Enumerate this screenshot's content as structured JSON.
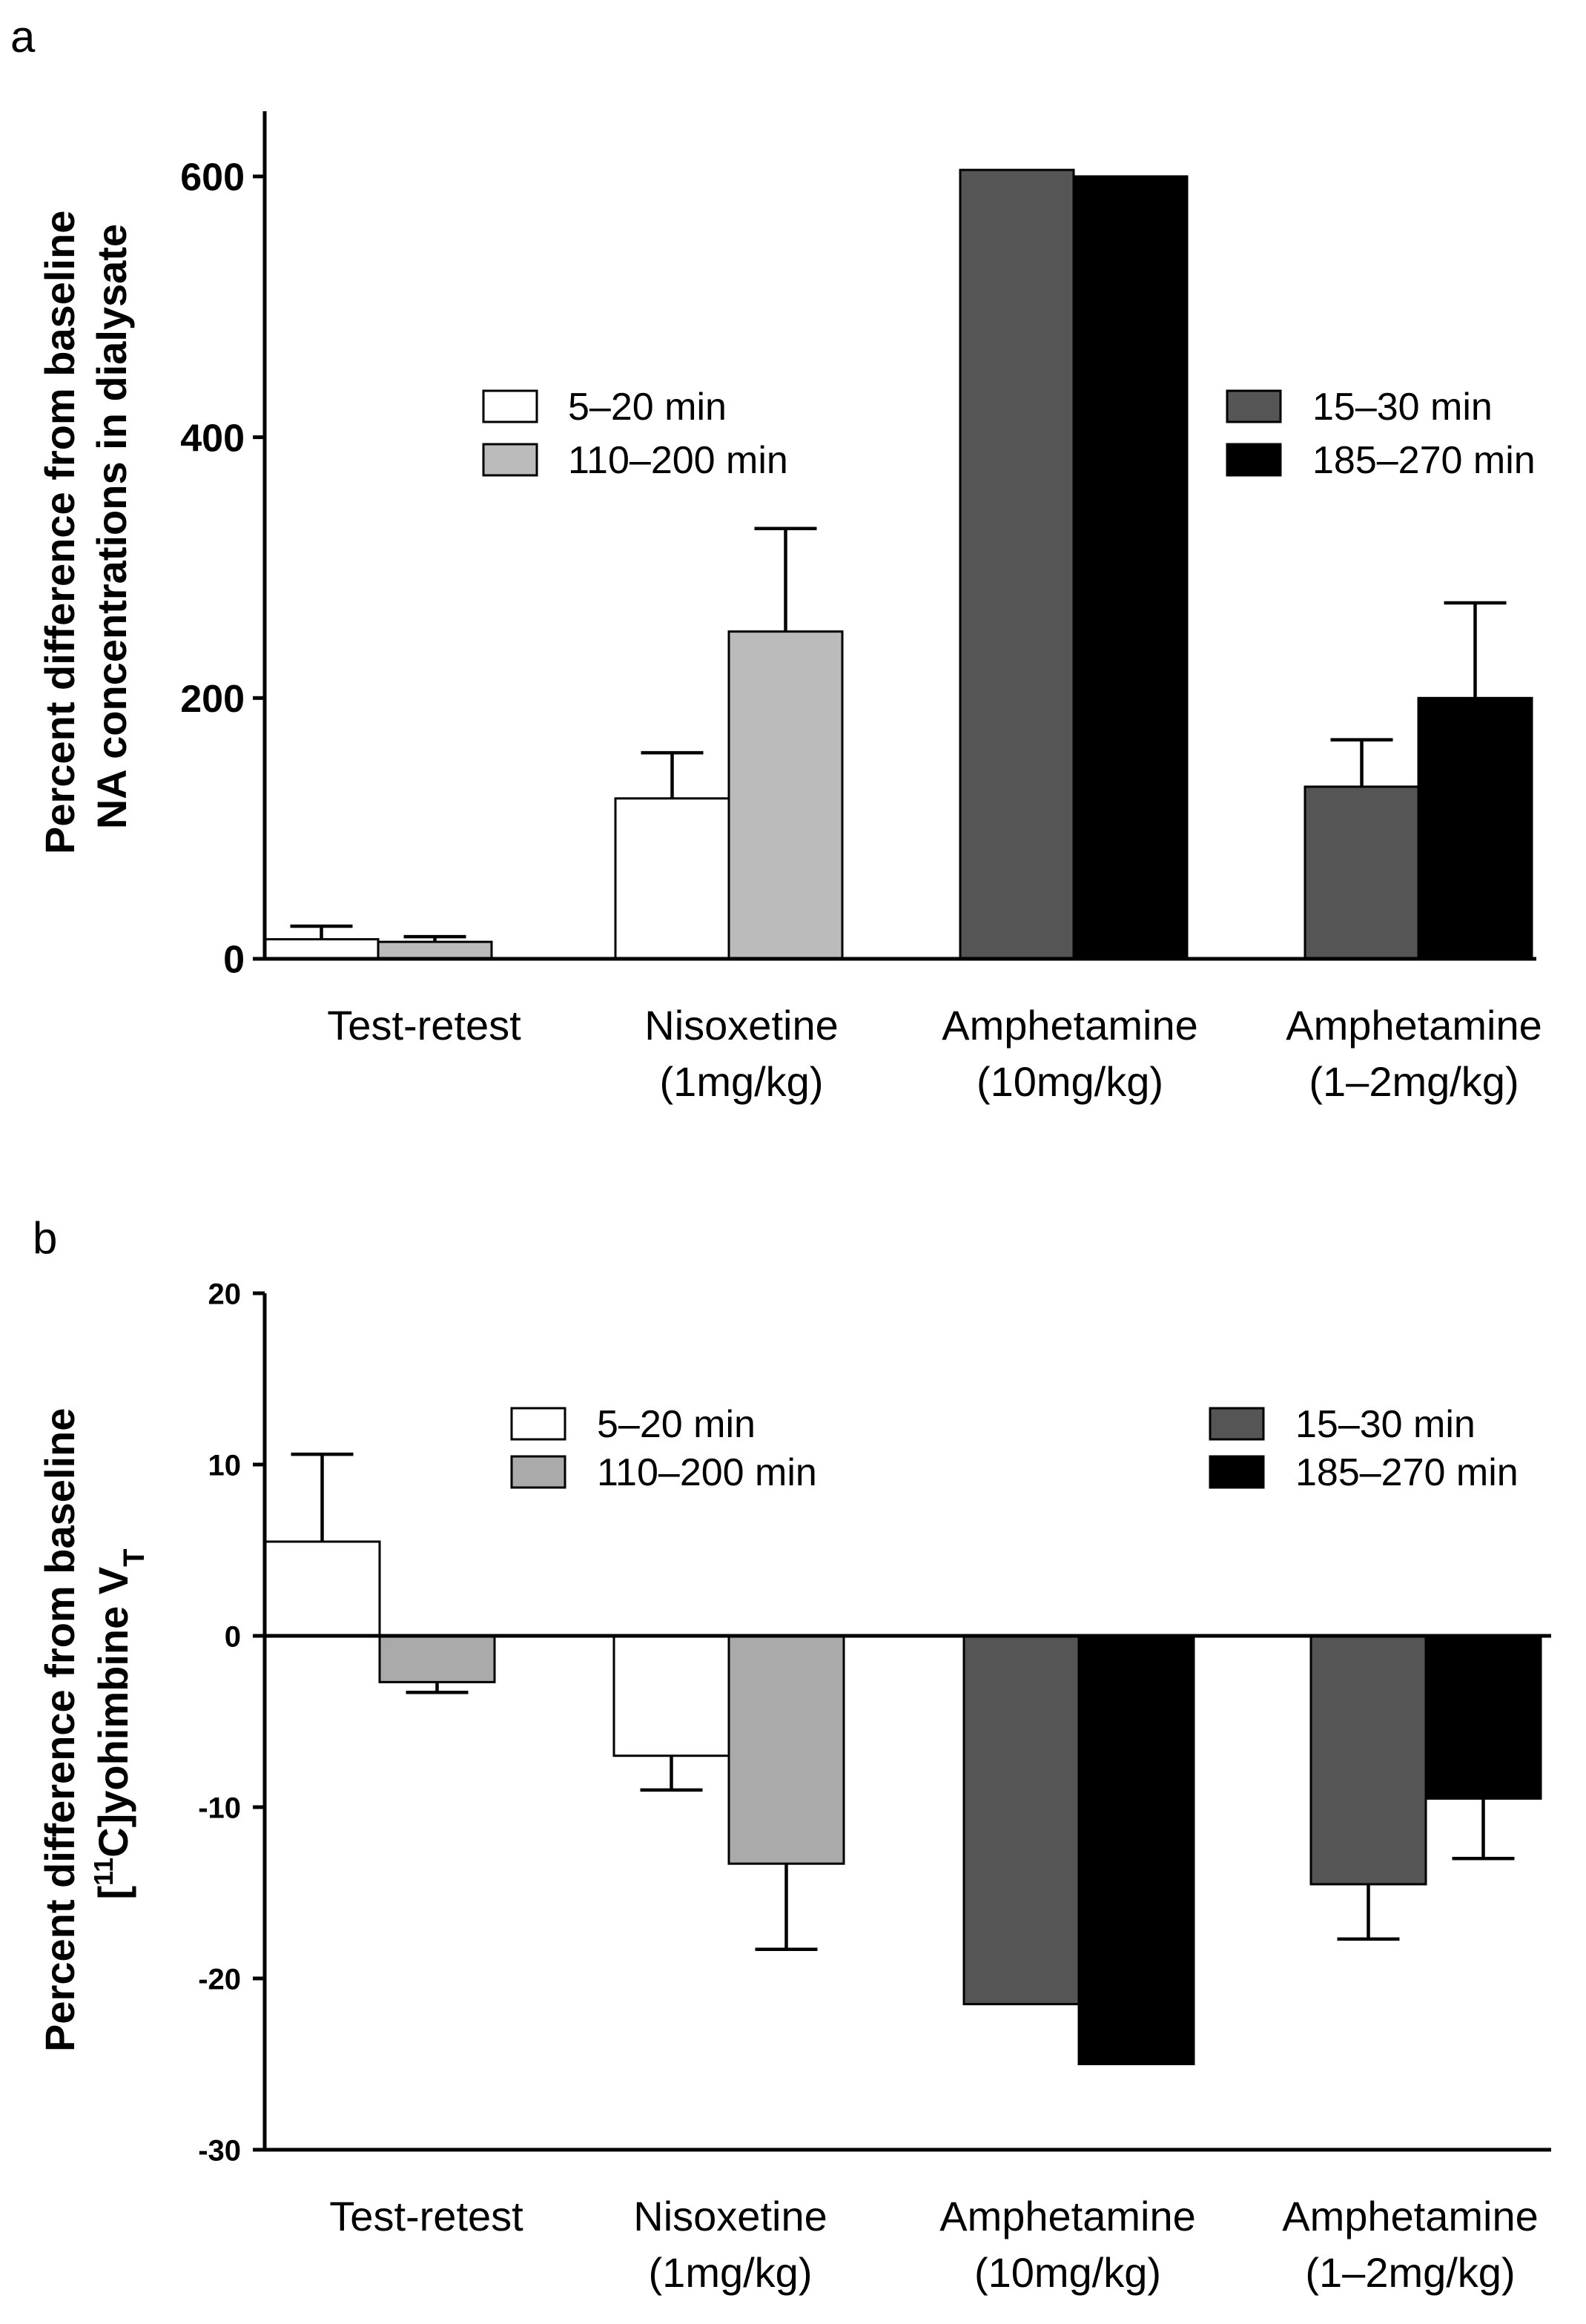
{
  "chart_data": [
    {
      "type": "bar",
      "panel": "a",
      "ylabel_lines": [
        "Percent difference from baseline",
        "NA concentrations in dialysate"
      ],
      "ylim": [
        0,
        650
      ],
      "yticks": [
        0,
        200,
        400,
        600
      ],
      "categories": [
        {
          "lines": [
            "Test-retest"
          ]
        },
        {
          "lines": [
            "Nisoxetine",
            "(1mg/kg)"
          ]
        },
        {
          "lines": [
            "Amphetamine",
            "(10mg/kg)"
          ]
        },
        {
          "lines": [
            "Amphetamine",
            "(1–2mg/kg)"
          ]
        }
      ],
      "bars": [
        {
          "category": 0,
          "slot": 0,
          "value": 15,
          "error": 10,
          "color": "#ffffff"
        },
        {
          "category": 0,
          "slot": 1,
          "value": 13,
          "error": 4,
          "color": "#bbbbbb"
        },
        {
          "category": 1,
          "slot": 0,
          "value": 123,
          "error": 35,
          "color": "#ffffff"
        },
        {
          "category": 1,
          "slot": 1,
          "value": 251,
          "error": 79,
          "color": "#bbbbbb"
        },
        {
          "category": 2,
          "slot": 0,
          "value": 605,
          "color": "#555555"
        },
        {
          "category": 2,
          "slot": 1,
          "value": 600,
          "color": "#000000"
        },
        {
          "category": 3,
          "slot": 0,
          "value": 132,
          "error": 36,
          "color": "#555555"
        },
        {
          "category": 3,
          "slot": 1,
          "value": 200,
          "error": 73,
          "color": "#000000"
        }
      ],
      "legend_left": [
        {
          "label": "5–20 min",
          "color": "#ffffff"
        },
        {
          "label": "110–200 min",
          "color": "#bbbbbb"
        }
      ],
      "legend_right": [
        {
          "label": "15–30 min",
          "color": "#555555"
        },
        {
          "label": "185–270 min",
          "color": "#000000"
        }
      ]
    },
    {
      "type": "bar",
      "panel": "b",
      "ylabel_line1": "Percent difference from baseline",
      "ylabel_line2": {
        "pre": "[",
        "sup": "11",
        "mid": "C]yohimbine V",
        "sub": "T"
      },
      "ylim": [
        -30,
        20
      ],
      "yticks": [
        20,
        10,
        0,
        -10,
        -20,
        -30
      ],
      "categories": [
        {
          "lines": [
            "Test-retest"
          ]
        },
        {
          "lines": [
            "Nisoxetine",
            "(1mg/kg)"
          ]
        },
        {
          "lines": [
            "Amphetamine",
            "(10mg/kg)"
          ]
        },
        {
          "lines": [
            "Amphetamine",
            "(1–2mg/kg)"
          ]
        }
      ],
      "bars": [
        {
          "category": 0,
          "slot": 0,
          "value": 5.5,
          "error": 5.1,
          "color": "#ffffff"
        },
        {
          "category": 0,
          "slot": 1,
          "value": -2.7,
          "error": 0.6,
          "color": "#aaaaaa"
        },
        {
          "category": 1,
          "slot": 0,
          "value": -7.0,
          "error": 2.0,
          "color": "#ffffff"
        },
        {
          "category": 1,
          "slot": 1,
          "value": -13.3,
          "error": 5.0,
          "color": "#aaaaaa"
        },
        {
          "category": 2,
          "slot": 0,
          "value": -21.5,
          "color": "#555555"
        },
        {
          "category": 2,
          "slot": 1,
          "value": -25.0,
          "color": "#000000"
        },
        {
          "category": 3,
          "slot": 0,
          "value": -14.5,
          "error": 3.2,
          "color": "#555555"
        },
        {
          "category": 3,
          "slot": 1,
          "value": -9.5,
          "error": 3.5,
          "color": "#000000"
        }
      ],
      "legend_left": [
        {
          "label": "5–20 min",
          "color": "#ffffff"
        },
        {
          "label": "110–200 min",
          "color": "#aaaaaa"
        }
      ],
      "legend_right": [
        {
          "label": "15–30 min",
          "color": "#555555"
        },
        {
          "label": "185–270 min",
          "color": "#000000"
        }
      ]
    }
  ]
}
